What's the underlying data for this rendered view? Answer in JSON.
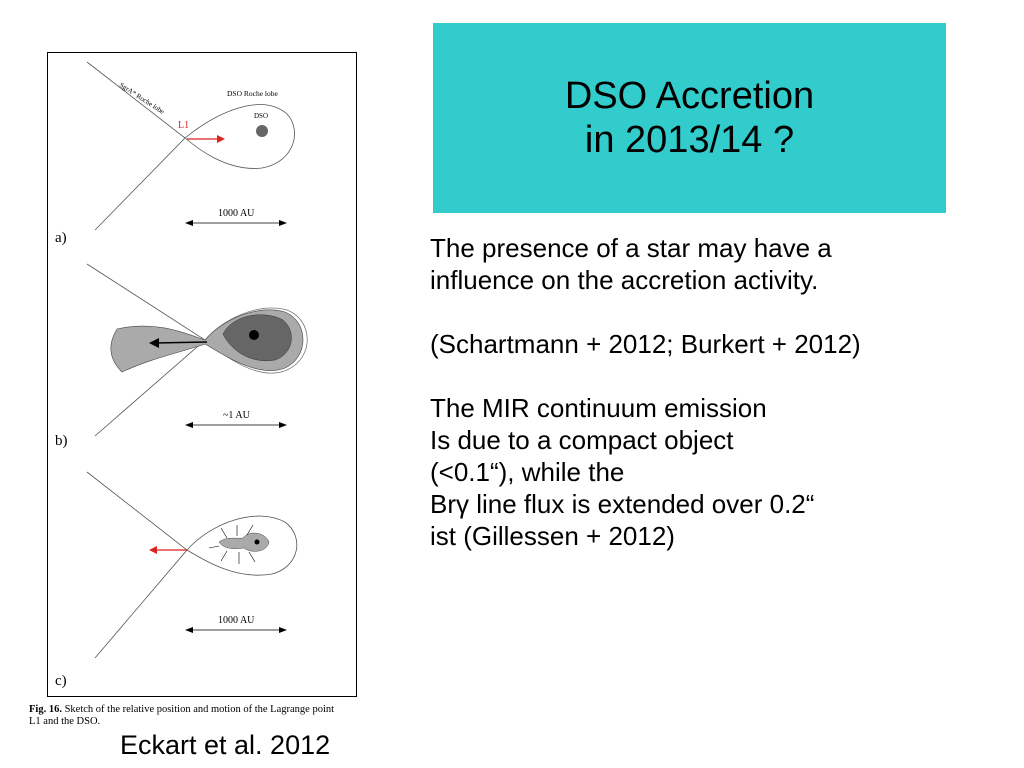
{
  "slide": {
    "title_lines": [
      "DSO Accretion",
      "in 2013/14 ?"
    ],
    "body_lines": [
      "The presence of a star may have a",
      "influence on the accretion activity.",
      "",
      "(Schartmann + 2012; Burkert + 2012)",
      "",
      "The MIR continuum emission",
      "Is due to a compact object",
      "(<0.1“), while the",
      "Brγ line flux is extended over  0.2“",
      "ist (Gillessen + 2012)"
    ],
    "credit": "Eckart et al. 2012"
  },
  "figure": {
    "panel_labels": [
      "a)",
      "b)",
      "c)"
    ],
    "sgra_label": "SgrA* Roche lobe",
    "dso_lobe_label": "DSO Roche lobe",
    "dso_label": "DSO",
    "l1_label": "L1",
    "scale_labels": [
      "1000 AU",
      "~1 AU",
      "1000 AU"
    ],
    "caption_bold": "Fig. 16.",
    "caption_text": " Sketch of the relative position and motion of the Lagrange point",
    "caption_line2": "L1 and the DSO.",
    "colors": {
      "arrow_red": "#dd2222",
      "gas_light": "#aaaaaa",
      "gas_dark": "#666666",
      "core": "#000000"
    }
  }
}
